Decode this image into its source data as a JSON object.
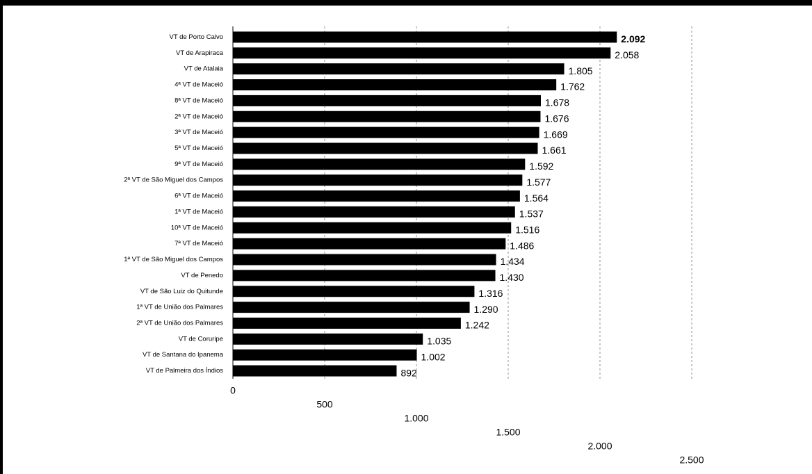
{
  "chart_data": {
    "type": "hbar",
    "categories": [
      "VT de Porto Calvo",
      "VT de Arapiraca",
      "VT de Atalaia",
      "4ª VT de Maceió",
      "8ª VT de Maceió",
      "2ª VT de Maceió",
      "3ª VT de Maceió",
      "5ª VT de Maceió",
      "9ª VT de Maceió",
      "2ª VT de São Miguel dos Campos",
      "6ª VT de Maceió",
      "1ª VT de Maceió",
      "10ª VT de Maceió",
      "7ª VT de Maceió",
      "1ª VT de São Miguel dos Campos",
      "VT de Penedo",
      "VT de São Luiz do Quitunde",
      "1ª VT de União dos Palmares",
      "2ª VT de União dos Palmares",
      "VT de Coruripe",
      "VT de Santana do Ipanema",
      "VT de Palmeira dos Índios"
    ],
    "values": [
      2092,
      2058,
      1805,
      1762,
      1678,
      1676,
      1669,
      1661,
      1592,
      1577,
      1564,
      1537,
      1516,
      1486,
      1434,
      1430,
      1316,
      1290,
      1242,
      1035,
      1002,
      892
    ],
    "value_labels": [
      "2.092",
      "2.058",
      "1.805",
      "1.762",
      "1.678",
      "1.676",
      "1.669",
      "1.661",
      "1.592",
      "1.577",
      "1.564",
      "1.537",
      "1.516",
      "1.486",
      "1.434",
      "1.430",
      "1.316",
      "1.290",
      "1.242",
      "1.035",
      "1.002",
      "892"
    ],
    "color": "#000000",
    "xlim": [
      0,
      2500
    ],
    "xticks": [
      0,
      500,
      {
        "value": 1000,
        "label": "1.000"
      },
      {
        "value": 1500,
        "label": "1.500"
      },
      {
        "value": 2000,
        "label": "2.000"
      },
      {
        "value": 2500,
        "label": "2.500"
      }
    ],
    "grid": true
  }
}
